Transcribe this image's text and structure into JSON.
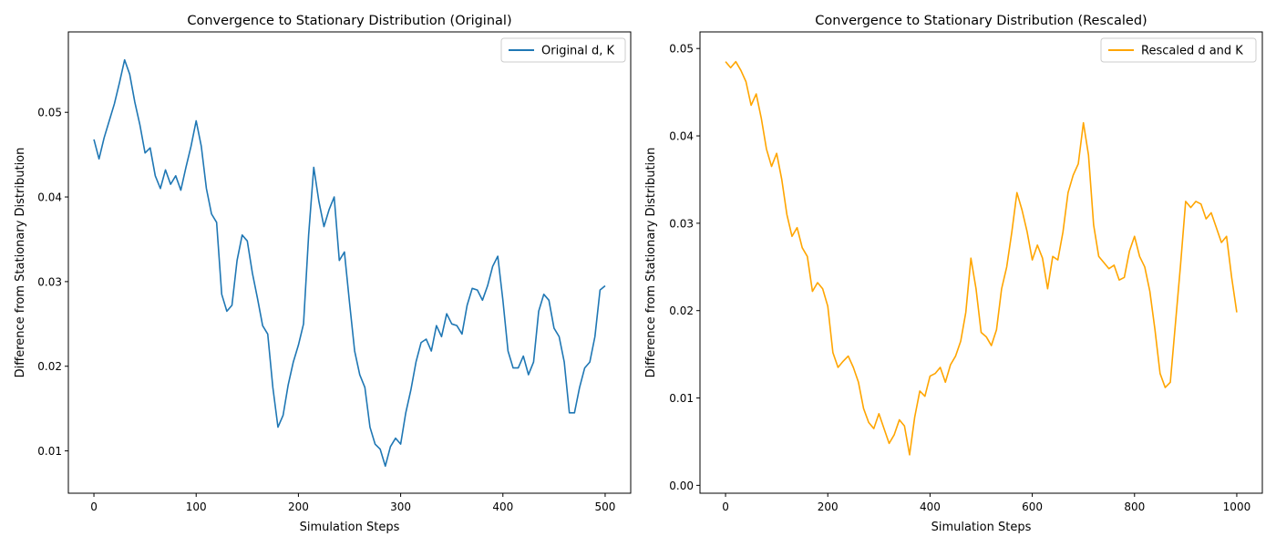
{
  "chart_data": [
    {
      "type": "line",
      "title": "Convergence to Stationary Distribution (Original)",
      "xlabel": "Simulation Steps",
      "ylabel": "Difference from Stationary Distribution",
      "xlim": [
        -25,
        525
      ],
      "ylim": [
        0.005,
        0.0595
      ],
      "xticks": [
        0,
        100,
        200,
        300,
        400,
        500
      ],
      "xtick_labels": [
        "0",
        "100",
        "200",
        "300",
        "400",
        "500"
      ],
      "yticks": [
        0.01,
        0.02,
        0.03,
        0.04,
        0.05
      ],
      "ytick_labels": [
        "0.01",
        "0.02",
        "0.03",
        "0.04",
        "0.05"
      ],
      "grid": false,
      "legend": "top-right",
      "series": [
        {
          "name": "Original d, K",
          "color": "#1f77b4",
          "x": [
            0,
            5,
            10,
            15,
            20,
            25,
            30,
            35,
            40,
            45,
            50,
            55,
            60,
            65,
            70,
            75,
            80,
            85,
            90,
            95,
            100,
            105,
            110,
            115,
            120,
            125,
            130,
            135,
            140,
            145,
            150,
            155,
            160,
            165,
            170,
            175,
            180,
            185,
            190,
            195,
            200,
            205,
            210,
            215,
            220,
            225,
            230,
            235,
            240,
            245,
            250,
            255,
            260,
            265,
            270,
            275,
            280,
            285,
            290,
            295,
            300,
            305,
            310,
            315,
            320,
            325,
            330,
            335,
            340,
            345,
            350,
            355,
            360,
            365,
            370,
            375,
            380,
            385,
            390,
            395,
            400,
            405,
            410,
            415,
            420,
            425,
            430,
            435,
            440,
            445,
            450,
            455,
            460,
            465,
            470,
            475,
            480,
            485,
            490,
            495,
            500
          ],
          "values": [
            0.0468,
            0.0445,
            0.047,
            0.049,
            0.051,
            0.0535,
            0.0562,
            0.0545,
            0.0512,
            0.0485,
            0.0452,
            0.0458,
            0.0425,
            0.041,
            0.0432,
            0.0415,
            0.0425,
            0.0408,
            0.0435,
            0.046,
            0.049,
            0.046,
            0.041,
            0.038,
            0.037,
            0.0285,
            0.0265,
            0.0272,
            0.0325,
            0.0355,
            0.0348,
            0.031,
            0.028,
            0.0248,
            0.0238,
            0.0175,
            0.0128,
            0.0142,
            0.0178,
            0.0205,
            0.0225,
            0.025,
            0.0355,
            0.0435,
            0.0395,
            0.0365,
            0.0385,
            0.04,
            0.0325,
            0.0335,
            0.0275,
            0.0218,
            0.019,
            0.0175,
            0.0128,
            0.0108,
            0.0102,
            0.0082,
            0.0105,
            0.0115,
            0.0108,
            0.0145,
            0.0172,
            0.0205,
            0.0228,
            0.0232,
            0.0218,
            0.0248,
            0.0235,
            0.0262,
            0.025,
            0.0248,
            0.0238,
            0.0272,
            0.0292,
            0.029,
            0.0278,
            0.0295,
            0.0318,
            0.033,
            0.0278,
            0.0218,
            0.0198,
            0.0198,
            0.0212,
            0.019,
            0.0205,
            0.0265,
            0.0285,
            0.0278,
            0.0245,
            0.0235,
            0.0205,
            0.0145,
            0.0145,
            0.0175,
            0.0198,
            0.0205,
            0.0235,
            0.029,
            0.0295
          ]
        }
      ]
    },
    {
      "type": "line",
      "title": "Convergence to Stationary Distribution (Rescaled)",
      "xlabel": "Simulation Steps",
      "ylabel": "Difference from Stationary Distribution",
      "xlim": [
        -50,
        1050
      ],
      "ylim": [
        -0.0009,
        0.0519
      ],
      "xticks": [
        0,
        200,
        400,
        600,
        800,
        1000
      ],
      "xtick_labels": [
        "0",
        "200",
        "400",
        "600",
        "800",
        "1000"
      ],
      "yticks": [
        0.0,
        0.01,
        0.02,
        0.03,
        0.04,
        0.05
      ],
      "ytick_labels": [
        "0.00",
        "0.01",
        "0.02",
        "0.03",
        "0.04",
        "0.05"
      ],
      "grid": false,
      "legend": "top-right",
      "series": [
        {
          "name": "Rescaled d and K",
          "color": "#ffa500",
          "x": [
            0,
            10,
            20,
            30,
            40,
            50,
            60,
            70,
            80,
            90,
            100,
            110,
            120,
            130,
            140,
            150,
            160,
            170,
            180,
            190,
            200,
            210,
            220,
            230,
            240,
            250,
            260,
            270,
            280,
            290,
            300,
            310,
            320,
            330,
            340,
            350,
            360,
            370,
            380,
            390,
            400,
            410,
            420,
            430,
            440,
            450,
            460,
            470,
            480,
            490,
            500,
            510,
            520,
            530,
            540,
            550,
            560,
            570,
            580,
            590,
            600,
            610,
            620,
            630,
            640,
            650,
            660,
            670,
            680,
            690,
            700,
            710,
            720,
            730,
            740,
            750,
            760,
            770,
            780,
            790,
            800,
            810,
            820,
            830,
            840,
            850,
            860,
            870,
            880,
            890,
            900,
            910,
            920,
            930,
            940,
            950,
            960,
            970,
            980,
            990,
            1000
          ],
          "values": [
            0.0485,
            0.0478,
            0.0485,
            0.0475,
            0.0462,
            0.0435,
            0.0448,
            0.042,
            0.0385,
            0.0365,
            0.038,
            0.035,
            0.031,
            0.0285,
            0.0295,
            0.0272,
            0.0262,
            0.0222,
            0.0232,
            0.0225,
            0.0205,
            0.0152,
            0.0135,
            0.0142,
            0.0148,
            0.0135,
            0.0118,
            0.0088,
            0.0072,
            0.0065,
            0.0082,
            0.0065,
            0.0048,
            0.0058,
            0.0075,
            0.0068,
            0.0035,
            0.0078,
            0.0108,
            0.0102,
            0.0125,
            0.0128,
            0.0135,
            0.0118,
            0.0138,
            0.0148,
            0.0165,
            0.0198,
            0.026,
            0.0225,
            0.0175,
            0.017,
            0.016,
            0.0178,
            0.0225,
            0.025,
            0.029,
            0.0335,
            0.0315,
            0.029,
            0.0258,
            0.0275,
            0.026,
            0.0225,
            0.0262,
            0.0258,
            0.029,
            0.0335,
            0.0355,
            0.0368,
            0.0415,
            0.0378,
            0.0298,
            0.0262,
            0.0255,
            0.0248,
            0.0252,
            0.0235,
            0.0238,
            0.0268,
            0.0285,
            0.0262,
            0.025,
            0.0222,
            0.0178,
            0.0128,
            0.0112,
            0.0118,
            0.0185,
            0.0252,
            0.0325,
            0.0318,
            0.0325,
            0.0322,
            0.0305,
            0.0312,
            0.0295,
            0.0278,
            0.0285,
            0.0238,
            0.0198
          ]
        }
      ]
    }
  ]
}
